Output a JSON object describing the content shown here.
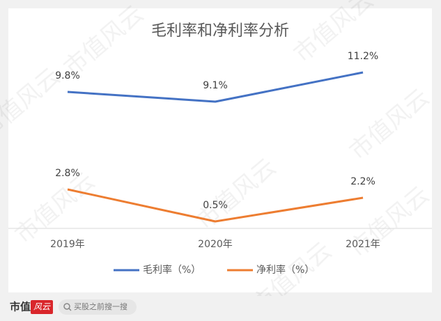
{
  "chart_data": {
    "type": "line",
    "title": "毛利率和净利率分析",
    "categories": [
      "2019年",
      "2020年",
      "2021年"
    ],
    "series": [
      {
        "name": "毛利率（%）",
        "color": "#4472c4",
        "values": [
          9.8,
          9.1,
          11.2
        ],
        "value_labels": [
          "9.8%",
          "9.1%",
          "11.2%"
        ]
      },
      {
        "name": "净利率（%）",
        "color": "#ed7d31",
        "values": [
          2.8,
          0.5,
          2.2
        ],
        "value_labels": [
          "2.8%",
          "0.5%",
          "2.2%"
        ]
      }
    ],
    "ylim": [
      0,
      14
    ],
    "legend": "bottom"
  },
  "watermark": "市值风云",
  "footer": {
    "logo_left": "市值",
    "logo_right": "风云",
    "search": "买股之前搜一搜"
  }
}
